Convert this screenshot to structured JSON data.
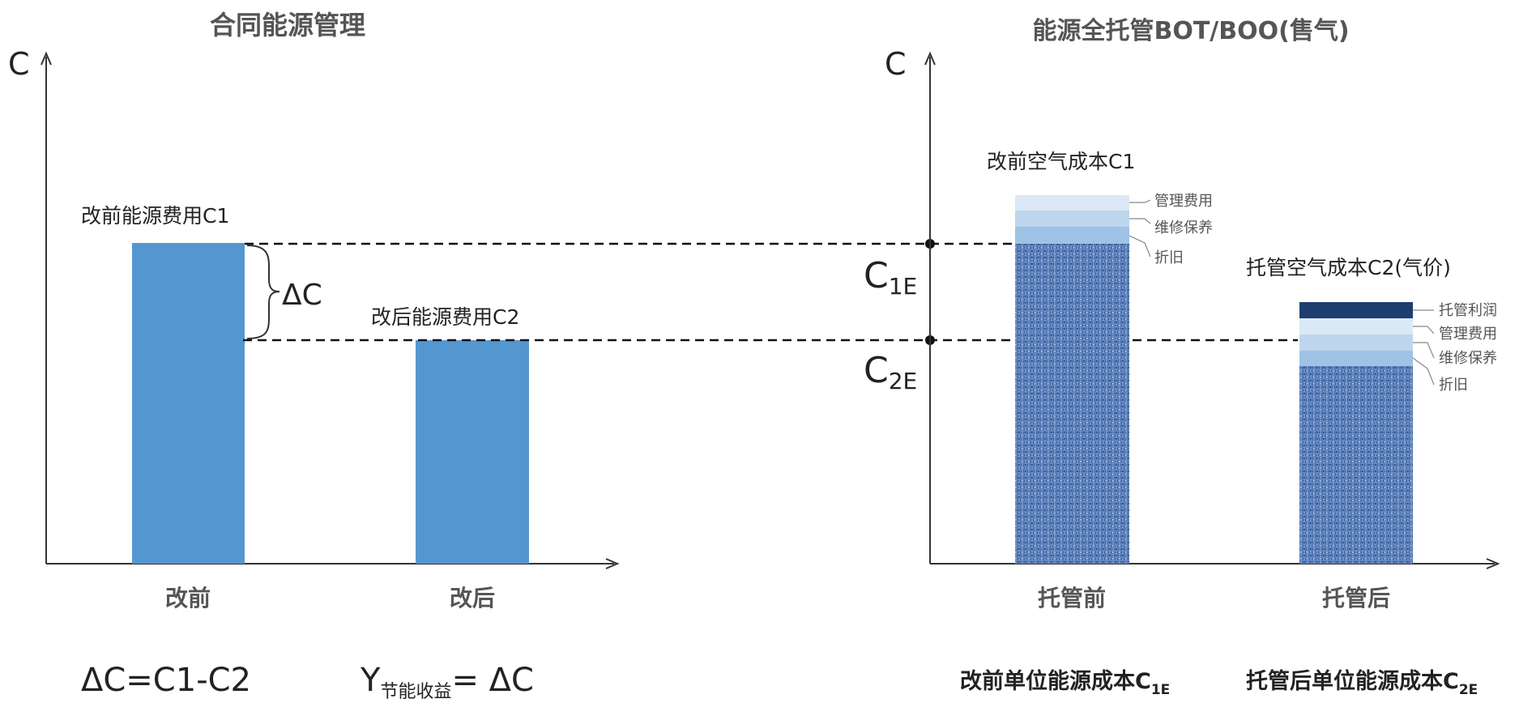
{
  "colors": {
    "bar_blue": "#5496D0",
    "hatch_base": "#5A80BC",
    "layer_light": "#DBE8F5",
    "layer_mid": "#BDD6EE",
    "layer_darker": "#9EC3E6",
    "profit_dark": "#1E3F6E",
    "title_gray": "#555555",
    "text_dark": "#222222"
  },
  "left_panel": {
    "title": "合同能源管理",
    "y_axis_label": "C",
    "categories": [
      "改前",
      "改后"
    ],
    "bars": [
      {
        "label": "改前能源费用C1",
        "value_symbol": "C1"
      },
      {
        "label": "改后能源费用C2",
        "value_symbol": "C2"
      }
    ],
    "delta_label": "ΔC",
    "formula_1": "ΔC=C1-C2",
    "formula_2_prefix": "Y",
    "formula_2_subscript": "节能收益",
    "formula_2_suffix": "= ΔC"
  },
  "right_panel": {
    "title": "能源全托管BOT/BOO(售气)",
    "y_axis_label": "C",
    "categories": [
      "托管前",
      "托管后"
    ],
    "level_labels": [
      {
        "main": "C",
        "sub": "1E"
      },
      {
        "main": "C",
        "sub": "2E"
      }
    ],
    "bar1_label": "改前空气成本C1",
    "bar1_layers": [
      "管理费用",
      "维修保养",
      "折旧"
    ],
    "bar2_label": "托管空气成本C2(气价)",
    "bar2_layers": [
      "托管利润",
      "管理费用",
      "维修保养",
      "折旧"
    ],
    "footer_1_main": "改前单位能源成本C",
    "footer_1_sub": "1E",
    "footer_2_main": "托管后单位能源成本C",
    "footer_2_sub": "2E"
  },
  "chart_data": [
    {
      "type": "bar",
      "title": "合同能源管理",
      "ylabel": "C",
      "categories": [
        "改前",
        "改后"
      ],
      "values": [
        "C1",
        "C2"
      ],
      "annotations": [
        "改前能源费用C1",
        "改后能源费用C2",
        "ΔC"
      ]
    },
    {
      "type": "bar",
      "title": "能源全托管BOT/BOO(售气)",
      "ylabel": "C",
      "categories": [
        "托管前",
        "托管后"
      ],
      "series": [
        {
          "name": "托管利润"
        },
        {
          "name": "管理费用"
        },
        {
          "name": "维修保养"
        },
        {
          "name": "折旧"
        }
      ],
      "annotations": [
        "改前空气成本C1",
        "托管空气成本C2(气价)",
        "C1E",
        "C2E"
      ]
    }
  ]
}
